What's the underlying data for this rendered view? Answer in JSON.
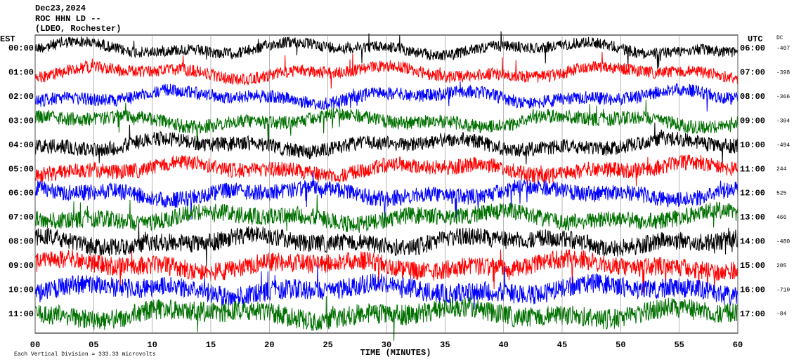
{
  "chart_data": {
    "type": "helicorder",
    "title_lines": [
      "Dec23,2024",
      "ROC HHN LD --",
      "(LDEO, Rochester)"
    ],
    "left_axis_title": "EST",
    "right_axis_title": "UTC",
    "dc_title": "DC",
    "xlabel": "TIME (MINUTES)",
    "xlim": [
      0,
      60
    ],
    "xticks": [
      {
        "value": 0,
        "label": "00"
      },
      {
        "value": 5,
        "label": "05"
      },
      10,
      15,
      20,
      25,
      30,
      35,
      40,
      45,
      50,
      55,
      60
    ],
    "rows": [
      {
        "est": "00:00",
        "utc": "06:00",
        "dc": -407,
        "color": "#000000"
      },
      {
        "est": "01:00",
        "utc": "07:00",
        "dc": -398,
        "color": "#ff0000"
      },
      {
        "est": "02:00",
        "utc": "08:00",
        "dc": -366,
        "color": "#0000ff"
      },
      {
        "est": "03:00",
        "utc": "09:00",
        "dc": -304,
        "color": "#007000"
      },
      {
        "est": "04:00",
        "utc": "10:00",
        "dc": -494,
        "color": "#000000"
      },
      {
        "est": "05:00",
        "utc": "11:00",
        "dc": 244,
        "color": "#ff0000"
      },
      {
        "est": "06:00",
        "utc": "12:00",
        "dc": 525,
        "color": "#0000ff"
      },
      {
        "est": "07:00",
        "utc": "13:00",
        "dc": 466,
        "color": "#007000"
      },
      {
        "est": "08:00",
        "utc": "14:00",
        "dc": -480,
        "color": "#000000"
      },
      {
        "est": "09:00",
        "utc": "15:00",
        "dc": 205,
        "color": "#ff0000"
      },
      {
        "est": "10:00",
        "utc": "16:00",
        "dc": -710,
        "color": "#0000ff"
      },
      {
        "est": "11:00",
        "utc": "17:00",
        "dc": -84,
        "color": "#007000"
      }
    ],
    "footnote": "Each Vertical Division =  333.33 microvolts"
  }
}
